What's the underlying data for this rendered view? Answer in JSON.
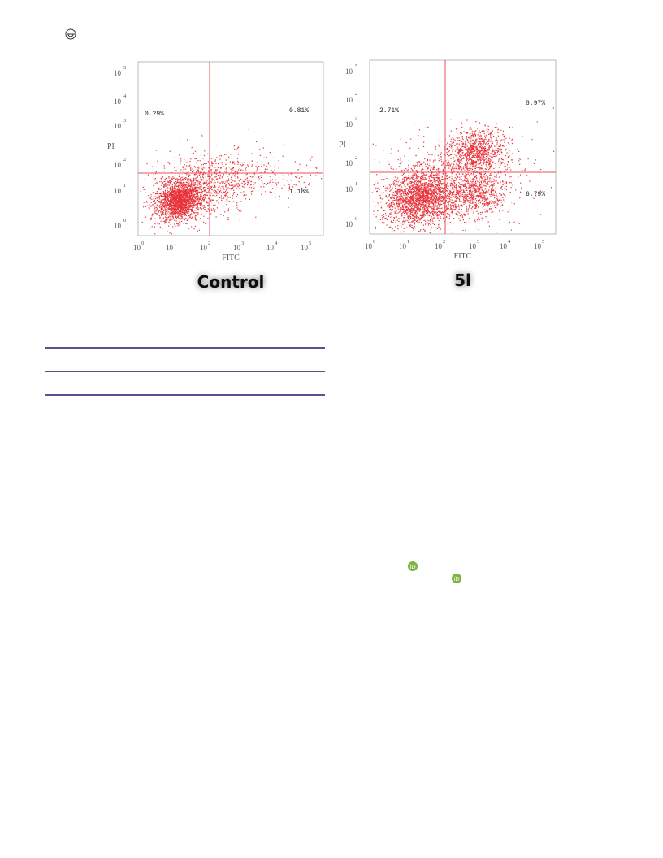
{
  "figure": {
    "panels": [
      {
        "caption": "Control",
        "x_label": "FITC",
        "y_label": "PI",
        "ticks": [
          {
            "base": "10",
            "exponent": "0"
          },
          {
            "base": "10",
            "exponent": "1"
          },
          {
            "base": "10",
            "exponent": "2"
          },
          {
            "base": "10",
            "exponent": "3"
          },
          {
            "base": "10",
            "exponent": "4"
          },
          {
            "base": "10",
            "exponent": "5"
          }
        ],
        "quadrants": {
          "upper_left": "0.29%",
          "upper_right": "0.81%",
          "lower_right": "1.18%"
        }
      },
      {
        "caption": "5l",
        "x_label": "FITC",
        "y_label": "PI",
        "ticks": [
          {
            "base": "10",
            "exponent": "0"
          },
          {
            "base": "10",
            "exponent": "1"
          },
          {
            "base": "10",
            "exponent": "2"
          },
          {
            "base": "10",
            "exponent": "3"
          },
          {
            "base": "10",
            "exponent": "4"
          },
          {
            "base": "10",
            "exponent": "5"
          }
        ],
        "quadrants": {
          "upper_left": "2.71%",
          "upper_right": "8.97%",
          "lower_right": "6.79%"
        }
      }
    ]
  }
}
